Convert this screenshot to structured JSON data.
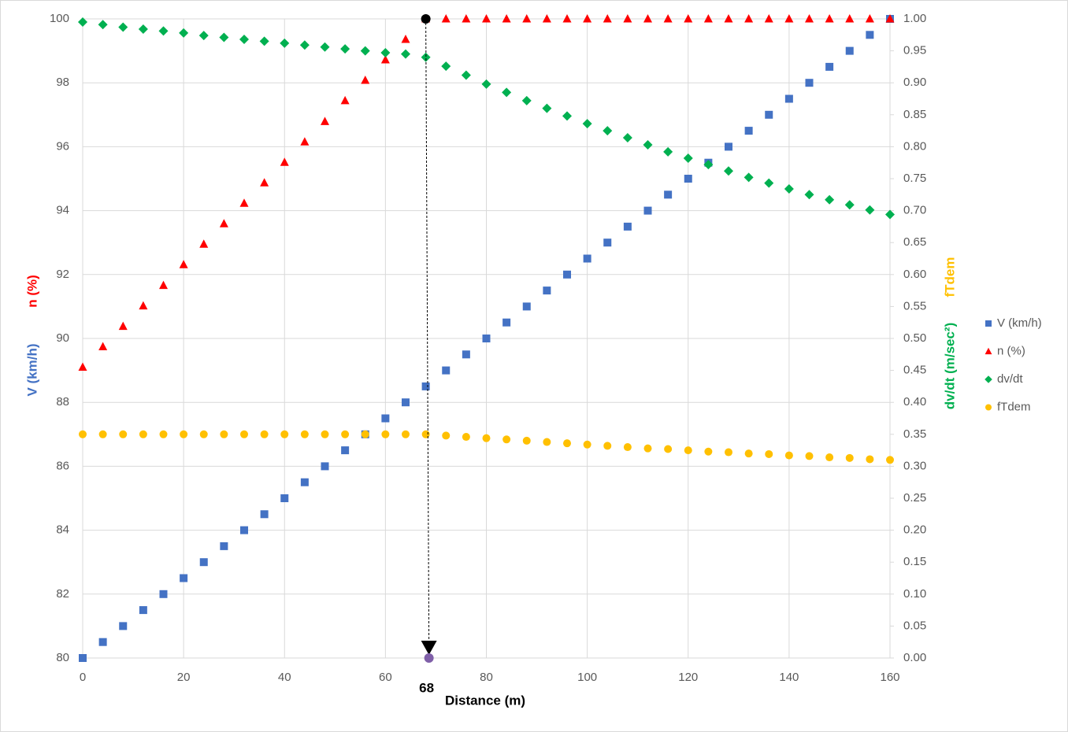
{
  "chart_data": {
    "type": "scatter",
    "x_label": "Distance (m)",
    "y_label": "V (km/h)",
    "y_label_2": "n (%)",
    "y2_label": "dv/dt (m/sec²)",
    "y2_label_2": "fTdem",
    "xlim": [
      0,
      160
    ],
    "xticks": [
      0,
      20,
      40,
      60,
      80,
      100,
      120,
      140,
      160
    ],
    "ylim": [
      80,
      100
    ],
    "yticks": [
      80,
      82,
      84,
      86,
      88,
      90,
      92,
      94,
      96,
      98,
      100
    ],
    "y2lim": [
      0,
      1
    ],
    "y2ticks": [
      {
        "value": 0,
        "label": "0.00"
      },
      {
        "value": 0.05,
        "label": "0.05"
      },
      {
        "value": 0.1,
        "label": "0.10"
      },
      {
        "value": 0.15,
        "label": "0.15"
      },
      {
        "value": 0.2,
        "label": "0.20"
      },
      {
        "value": 0.25,
        "label": "0.25"
      },
      {
        "value": 0.3,
        "label": "0.30"
      },
      {
        "value": 0.35,
        "label": "0.35"
      },
      {
        "value": 0.4,
        "label": "0.40"
      },
      {
        "value": 0.45,
        "label": "0.45"
      },
      {
        "value": 0.5,
        "label": "0.50"
      },
      {
        "value": 0.55,
        "label": "0.55"
      },
      {
        "value": 0.6,
        "label": "0.60"
      },
      {
        "value": 0.65,
        "label": "0.65"
      },
      {
        "value": 0.7,
        "label": "0.70"
      },
      {
        "value": 0.75,
        "label": "0.75"
      },
      {
        "value": 0.8,
        "label": "0.80"
      },
      {
        "value": 0.85,
        "label": "0.85"
      },
      {
        "value": 0.9,
        "label": "0.90"
      },
      {
        "value": 0.95,
        "label": "0.95"
      },
      {
        "value": 1,
        "label": "1.00"
      }
    ],
    "grid": true,
    "legend": "right",
    "annotation": {
      "x": 68,
      "label": 68
    },
    "x": [
      0,
      4,
      8,
      12,
      16,
      20,
      24,
      28,
      32,
      36,
      40,
      44,
      48,
      52,
      56,
      60,
      64,
      68,
      72,
      76,
      80,
      84,
      88,
      92,
      96,
      100,
      104,
      108,
      112,
      116,
      120,
      124,
      128,
      132,
      136,
      140,
      144,
      148,
      152,
      156,
      160
    ],
    "series": [
      {
        "name": "V (km/h)",
        "color": "#4472c4",
        "marker": "square",
        "axis": "y",
        "values": [
          80,
          80.5,
          81,
          81.5,
          82,
          82.5,
          83,
          83.5,
          84,
          84.5,
          85,
          85.5,
          86,
          86.5,
          87,
          87.5,
          88,
          88.5,
          89,
          89.5,
          90,
          90.5,
          91,
          91.5,
          92,
          92.5,
          93,
          93.5,
          94,
          94.5,
          95,
          95.5,
          96,
          96.5,
          97,
          97.5,
          98,
          98.5,
          99,
          99.5,
          100
        ]
      },
      {
        "name": "n (%)",
        "color": "#ff0000",
        "marker": "triangle",
        "axis": "y",
        "values": [
          89.1,
          89.74,
          90.38,
          91.02,
          91.66,
          92.31,
          92.95,
          93.59,
          94.23,
          94.87,
          95.51,
          96.15,
          96.79,
          97.44,
          98.08,
          98.72,
          99.36,
          100,
          100,
          100,
          100,
          100,
          100,
          100,
          100,
          100,
          100,
          100,
          100,
          100,
          100,
          100,
          100,
          100,
          100,
          100,
          100,
          100,
          100,
          100,
          100
        ]
      },
      {
        "name": "dv/dt",
        "color": "#00b050",
        "marker": "diamond",
        "axis": "y2",
        "values": [
          0.995,
          0.991,
          0.987,
          0.984,
          0.981,
          0.978,
          0.974,
          0.971,
          0.968,
          0.965,
          0.962,
          0.959,
          0.956,
          0.953,
          0.95,
          0.947,
          0.945,
          0.94,
          0.926,
          0.912,
          0.898,
          0.885,
          0.872,
          0.86,
          0.848,
          0.836,
          0.825,
          0.814,
          0.803,
          0.792,
          0.782,
          0.772,
          0.762,
          0.752,
          0.743,
          0.734,
          0.725,
          0.717,
          0.709,
          0.701,
          0.694
        ]
      },
      {
        "name": "fTdem",
        "color": "#ffc000",
        "marker": "circle",
        "axis": "y2",
        "values": [
          0.35,
          0.35,
          0.35,
          0.35,
          0.35,
          0.35,
          0.35,
          0.35,
          0.35,
          0.35,
          0.35,
          0.35,
          0.35,
          0.35,
          0.35,
          0.35,
          0.35,
          0.35,
          0.348,
          0.346,
          0.344,
          0.342,
          0.34,
          0.338,
          0.336,
          0.334,
          0.332,
          0.33,
          0.328,
          0.327,
          0.325,
          0.323,
          0.322,
          0.32,
          0.319,
          0.317,
          0.316,
          0.314,
          0.313,
          0.311,
          0.31
        ]
      }
    ]
  }
}
